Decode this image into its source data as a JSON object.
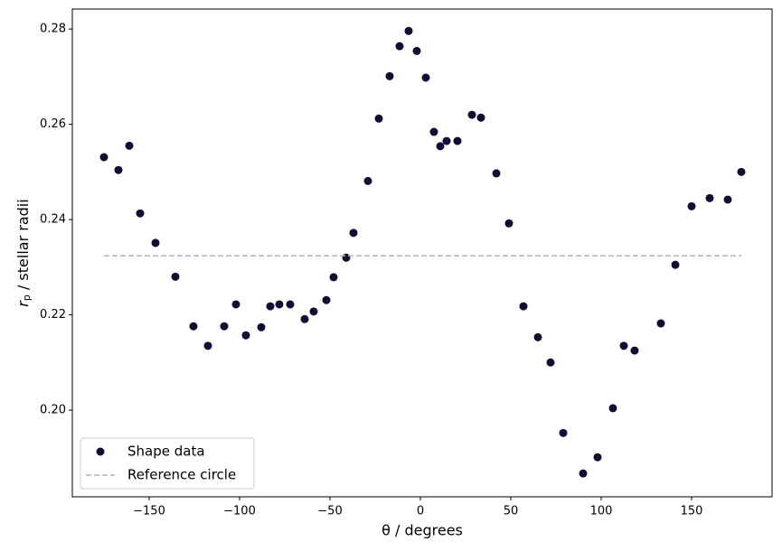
{
  "chart_data": {
    "type": "scatter",
    "x_label": "θ / degrees",
    "y_label": {
      "symbol": "r",
      "subscript": "p",
      "text": " / stellar radii"
    },
    "xlim": [
      -192.5,
      194.5
    ],
    "ylim": [
      0.1818,
      0.2842
    ],
    "xticks": [
      {
        "value": -150,
        "label": "−150"
      },
      {
        "value": -100,
        "label": "−100"
      },
      {
        "value": -50,
        "label": "−50"
      },
      {
        "value": 0,
        "label": "0"
      },
      {
        "value": 50,
        "label": "50"
      },
      {
        "value": 100,
        "label": "100"
      },
      {
        "value": 150,
        "label": "150"
      }
    ],
    "yticks": [
      {
        "value": 0.2,
        "label": "0.20"
      },
      {
        "value": 0.22,
        "label": "0.22"
      },
      {
        "value": 0.24,
        "label": "0.24"
      },
      {
        "value": 0.26,
        "label": "0.26"
      },
      {
        "value": 0.28,
        "label": "0.28"
      }
    ],
    "grid": false,
    "legend": "lower left",
    "series": [
      {
        "name": "Shape data",
        "type": "scatter",
        "color": "#140a32",
        "x": [
          -175,
          -167,
          -161,
          -155,
          -146.5,
          -135.5,
          -125.5,
          -117.5,
          -108.5,
          -102,
          -96.5,
          -88,
          -83,
          -78,
          -72,
          -64,
          -59,
          -52,
          -48,
          -41,
          -37,
          -29,
          -23,
          -17,
          -11.5,
          -6.5,
          -2,
          3,
          7.5,
          11,
          14.5,
          20.5,
          28.5,
          33.5,
          42,
          49,
          57,
          65,
          72,
          79,
          90,
          98,
          106.5,
          112.5,
          118.5,
          133,
          141,
          150,
          160,
          170,
          177.5
        ],
        "values": [
          0.2531,
          0.2504,
          0.2555,
          0.2413,
          0.2351,
          0.228,
          0.2176,
          0.2135,
          0.2176,
          0.2222,
          0.2157,
          0.2174,
          0.2218,
          0.2222,
          0.2222,
          0.2191,
          0.2207,
          0.2231,
          0.2279,
          0.232,
          0.2372,
          0.2481,
          0.2612,
          0.2701,
          0.2764,
          0.2796,
          0.2754,
          0.2698,
          0.2584,
          0.2554,
          0.2565,
          0.2565,
          0.262,
          0.2614,
          0.2497,
          0.2392,
          0.2218,
          0.2153,
          0.21,
          0.1952,
          0.1867,
          0.1901,
          0.2004,
          0.2135,
          0.2125,
          0.2182,
          0.2305,
          0.2428,
          0.2445,
          0.2442,
          0.25
        ]
      },
      {
        "name": "Reference circle",
        "type": "line",
        "color": "#b3b3b3",
        "dashed": true,
        "x": [
          -175,
          177.5
        ],
        "values": [
          0.2324,
          0.2324
        ]
      }
    ]
  }
}
